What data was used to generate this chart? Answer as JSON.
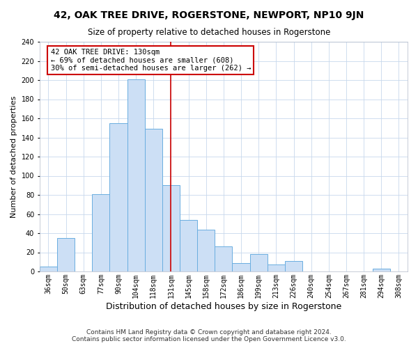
{
  "title": "42, OAK TREE DRIVE, ROGERSTONE, NEWPORT, NP10 9JN",
  "subtitle": "Size of property relative to detached houses in Rogerstone",
  "xlabel": "Distribution of detached houses by size in Rogerstone",
  "ylabel": "Number of detached properties",
  "bar_labels": [
    "36sqm",
    "50sqm",
    "63sqm",
    "77sqm",
    "90sqm",
    "104sqm",
    "118sqm",
    "131sqm",
    "145sqm",
    "158sqm",
    "172sqm",
    "186sqm",
    "199sqm",
    "213sqm",
    "226sqm",
    "240sqm",
    "254sqm",
    "267sqm",
    "281sqm",
    "294sqm",
    "308sqm"
  ],
  "bar_values": [
    5,
    35,
    0,
    81,
    155,
    201,
    149,
    90,
    54,
    44,
    26,
    9,
    18,
    7,
    11,
    0,
    0,
    0,
    0,
    3,
    0
  ],
  "bar_color": "#ccdff5",
  "bar_edge_color": "#6aaee0",
  "vline_x_index": 7,
  "vline_color": "#cc0000",
  "annotation_title": "42 OAK TREE DRIVE: 130sqm",
  "annotation_line1": "← 69% of detached houses are smaller (608)",
  "annotation_line2": "30% of semi-detached houses are larger (262) →",
  "annotation_box_color": "#ffffff",
  "annotation_box_edge": "#cc0000",
  "ylim": [
    0,
    240
  ],
  "yticks": [
    0,
    20,
    40,
    60,
    80,
    100,
    120,
    140,
    160,
    180,
    200,
    220,
    240
  ],
  "footnote1": "Contains HM Land Registry data © Crown copyright and database right 2024.",
  "footnote2": "Contains public sector information licensed under the Open Government Licence v3.0.",
  "bg_color": "#ffffff",
  "grid_color": "#c8d8ec",
  "title_fontsize": 10,
  "subtitle_fontsize": 8.5,
  "xlabel_fontsize": 9,
  "ylabel_fontsize": 8,
  "tick_fontsize": 7,
  "annotation_fontsize": 7.5,
  "footnote_fontsize": 6.5
}
